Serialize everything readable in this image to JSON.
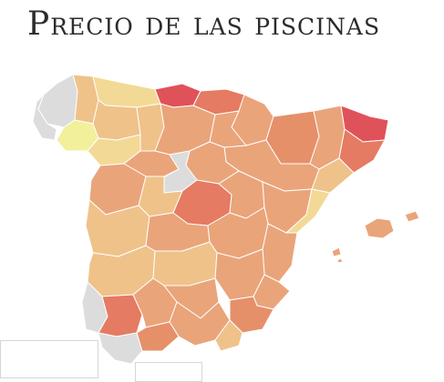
{
  "title": "Precio de las piscinas",
  "colors": {
    "no_data": "#dcdcdc",
    "lightest": "#f2f09a",
    "light": "#f3d996",
    "low": "#efc28a",
    "mid": "#eaa47a",
    "midhigh": "#e6906a",
    "high": "#e57b62",
    "highest": "#e0525a"
  },
  "regions": [
    {
      "name": "galicia-north",
      "level": "no_data"
    },
    {
      "name": "galicia-coast",
      "level": "no_data"
    },
    {
      "name": "lugo",
      "level": "low"
    },
    {
      "name": "ourense",
      "level": "lightest"
    },
    {
      "name": "asturias",
      "level": "light"
    },
    {
      "name": "cantabria",
      "level": "highest"
    },
    {
      "name": "pais-vasco",
      "level": "high"
    },
    {
      "name": "leon",
      "level": "low"
    },
    {
      "name": "palencia",
      "level": "low"
    },
    {
      "name": "burgos",
      "level": "mid"
    },
    {
      "name": "zamora",
      "level": "light"
    },
    {
      "name": "valladolid",
      "level": "mid"
    },
    {
      "name": "navarra",
      "level": "mid"
    },
    {
      "name": "la-rioja",
      "level": "mid"
    },
    {
      "name": "huesca",
      "level": "midhigh"
    },
    {
      "name": "lleida",
      "level": "mid"
    },
    {
      "name": "girona",
      "level": "highest"
    },
    {
      "name": "barcelona",
      "level": "high"
    },
    {
      "name": "tarragona",
      "level": "low"
    },
    {
      "name": "zaragoza",
      "level": "mid"
    },
    {
      "name": "soria",
      "level": "mid"
    },
    {
      "name": "segovia",
      "level": "no_data"
    },
    {
      "name": "salamanca",
      "level": "mid"
    },
    {
      "name": "avila",
      "level": "low"
    },
    {
      "name": "madrid",
      "level": "high"
    },
    {
      "name": "guadalajara",
      "level": "mid"
    },
    {
      "name": "teruel",
      "level": "mid"
    },
    {
      "name": "castellon",
      "level": "light"
    },
    {
      "name": "caceres",
      "level": "low"
    },
    {
      "name": "toledo",
      "level": "mid"
    },
    {
      "name": "cuenca",
      "level": "mid"
    },
    {
      "name": "valencia",
      "level": "mid"
    },
    {
      "name": "badajoz",
      "level": "low"
    },
    {
      "name": "ciudad-real",
      "level": "low"
    },
    {
      "name": "albacete",
      "level": "mid"
    },
    {
      "name": "alicante",
      "level": "mid"
    },
    {
      "name": "huelva",
      "level": "no_data"
    },
    {
      "name": "sevilla",
      "level": "high"
    },
    {
      "name": "cordoba",
      "level": "mid"
    },
    {
      "name": "jaen",
      "level": "mid"
    },
    {
      "name": "murcia",
      "level": "midhigh"
    },
    {
      "name": "cadiz",
      "level": "no_data"
    },
    {
      "name": "malaga",
      "level": "midhigh"
    },
    {
      "name": "granada",
      "level": "mid"
    },
    {
      "name": "almeria",
      "level": "low"
    },
    {
      "name": "mallorca",
      "level": "mid"
    },
    {
      "name": "menorca",
      "level": "mid"
    },
    {
      "name": "ibiza",
      "level": "mid"
    },
    {
      "name": "formentera",
      "level": "mid"
    }
  ]
}
